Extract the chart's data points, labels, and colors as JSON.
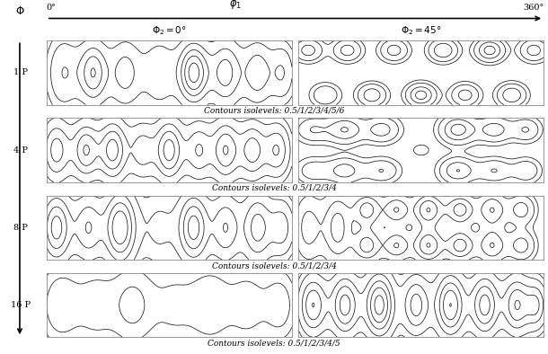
{
  "rows": [
    "1 P",
    "4 P",
    "8 P",
    "16 P"
  ],
  "contour_labels": [
    "Contours isolevels: 0.5/1/2/3/4/5/6",
    "Contours isolevels: 0.5/1/2/3/4",
    "Contours isolevels: 0.5/1/2/3/4",
    "Contours isolevels: 0.5/1/2/3/4/5"
  ],
  "contour_levels": [
    [
      0.5,
      1,
      2,
      3,
      4,
      5,
      6
    ],
    [
      0.5,
      1,
      2,
      3,
      4
    ],
    [
      0.5,
      1,
      2,
      3,
      4
    ],
    [
      0.5,
      1,
      2,
      3,
      4,
      5
    ]
  ],
  "contour_color": "#1a1a1a",
  "font_size_row": 7,
  "font_size_title": 7.5,
  "font_size_contour": 6.5,
  "font_size_axis": 7
}
